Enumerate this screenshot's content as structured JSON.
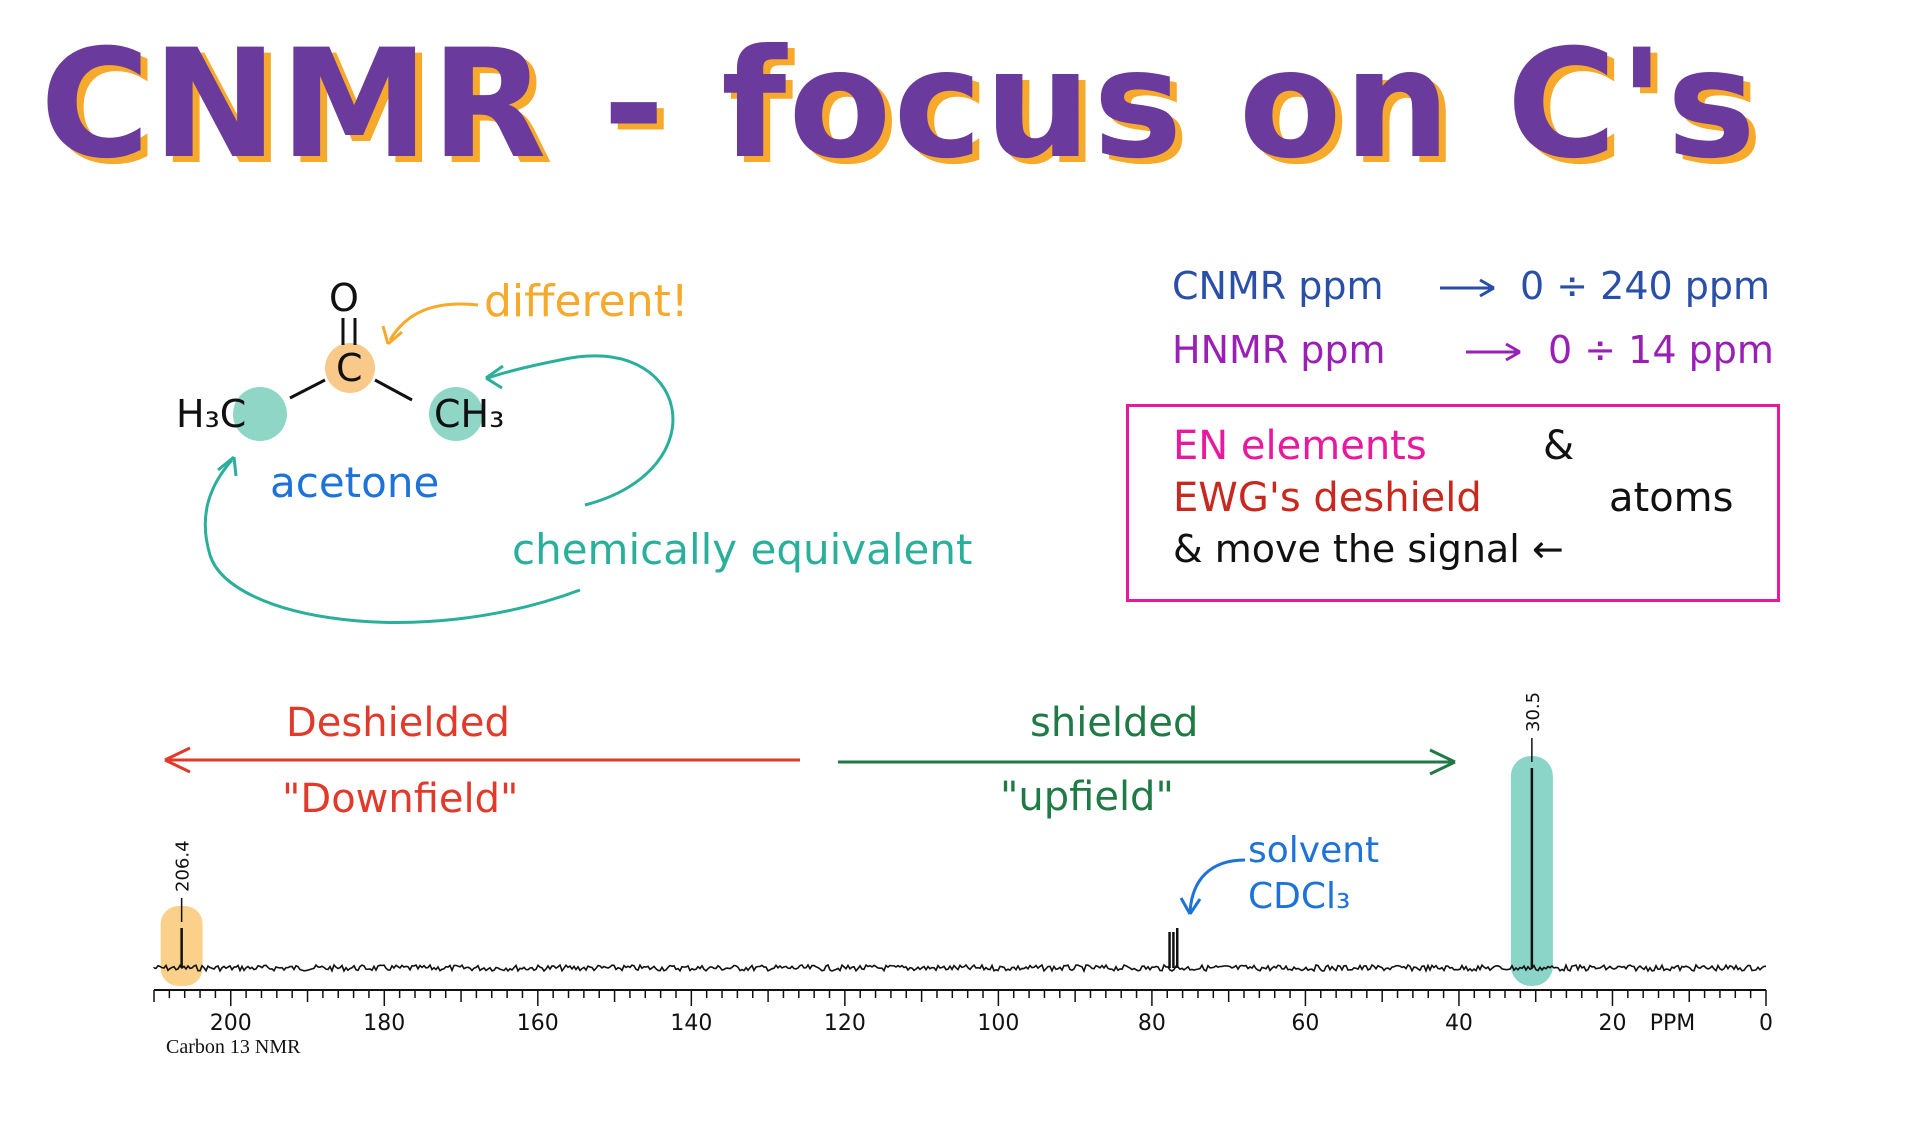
{
  "title": "CNMR - focus on C's",
  "molecule": {
    "oxygen": "O",
    "carbon": "C",
    "left_group": "H₃C",
    "right_group": "CH₃",
    "name": "acetone",
    "different_label": "different!",
    "equivalent_label": "chemically equivalent"
  },
  "ranges": {
    "cnmr": {
      "label": "CNMR ppm",
      "range": "0 ÷ 240 ppm",
      "color": "#2a4fa8"
    },
    "hnmr": {
      "label": "HNMR ppm",
      "range": "0 ÷ 14 ppm",
      "color": "#9a1fb5"
    }
  },
  "note": {
    "line1_a": "EN elements",
    "line1_b": "&",
    "line2_a": "EWG's deshield",
    "line2_b": "atoms",
    "line3": "& move the signal ←"
  },
  "direction": {
    "deshielded": "Deshielded",
    "downfield": "\"Downfield\"",
    "shielded": "shielded",
    "upfield": "\"upfield\""
  },
  "solvent": {
    "line1": "solvent",
    "line2": "CDCl₃"
  },
  "chart_data": {
    "type": "line",
    "xlim": [
      210,
      0
    ],
    "ticks": [
      200,
      180,
      160,
      140,
      120,
      100,
      80,
      60,
      40,
      20,
      0
    ],
    "tick_labels": [
      "200",
      "180",
      "160",
      "140",
      "120",
      "100",
      "80",
      "60",
      "40",
      "20",
      "0"
    ],
    "unit_label": "PPM",
    "caption": "Carbon 13 NMR",
    "peaks": [
      {
        "ppm": 206.4,
        "height": 0.2,
        "label": "206.4"
      },
      {
        "ppm": 77.7,
        "height": 0.18
      },
      {
        "ppm": 77.2,
        "height": 0.18
      },
      {
        "ppm": 76.7,
        "height": 0.2
      },
      {
        "ppm": 30.5,
        "height": 1.0,
        "label": "30.5"
      }
    ]
  },
  "colors": {
    "title": "#6a3a9c",
    "title_shadow": "#f6a92a",
    "orange": "#f6a92a",
    "teal": "#2ab09a",
    "blue": "#1e73d8",
    "red": "#e23a2a",
    "green": "#1f7a45",
    "magenta": "#e8199e",
    "darkred": "#c8281e"
  }
}
